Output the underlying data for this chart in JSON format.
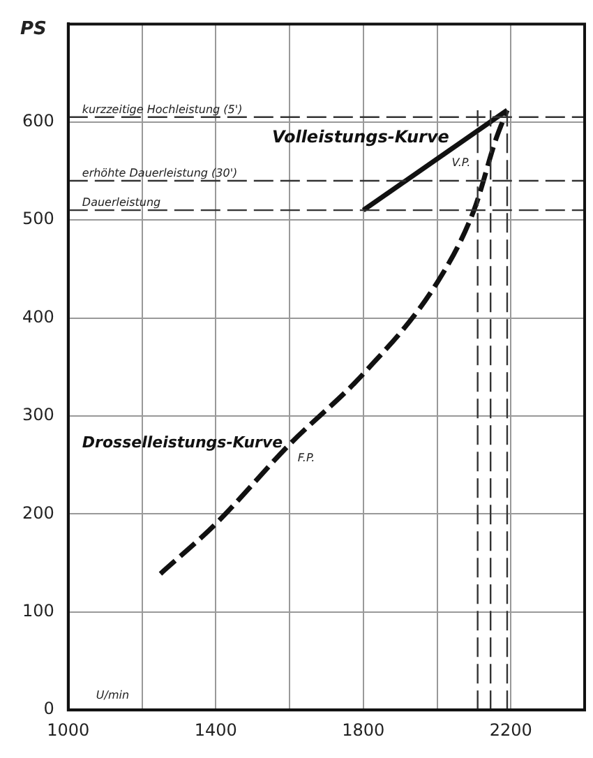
{
  "chart_data": {
    "type": "line",
    "xlabel": "U/min",
    "ylabel": "PS",
    "xlim": [
      1000,
      2400
    ],
    "ylim": [
      0,
      700
    ],
    "xticks": [
      1000,
      {
        "value": 1200,
        "label": null
      },
      1400,
      {
        "value": 1600,
        "label": null
      },
      1800,
      {
        "value": 2000,
        "label": null
      },
      2200
    ],
    "yticks": [
      0,
      100,
      200,
      300,
      400,
      500,
      600
    ],
    "grid": true,
    "legend": false,
    "marker": "none",
    "series": [
      {
        "name": "Volleistungs-Kurve",
        "color": "#111111",
        "line_style": "solid",
        "x": [
          1800,
          2190
        ],
        "values": [
          510,
          612
        ]
      },
      {
        "name": "Drosselleistungs-Kurve",
        "color": "#111111",
        "line_style": "dashed",
        "x": [
          1250,
          1400,
          1600,
          1800,
          2000,
          2100,
          2160,
          2190
        ],
        "values": [
          139,
          190,
          271,
          343,
          436,
          510,
          583,
          612
        ]
      }
    ],
    "ref_lines": [
      {
        "axis": "y",
        "value": 605,
        "label": "kurzzeitige Hochleistung (5')",
        "line_style": "dashed",
        "color": "#333333"
      },
      {
        "axis": "y",
        "value": 540,
        "label": "erhöhte Dauerleistung (30')",
        "line_style": "dashed",
        "color": "#333333"
      },
      {
        "axis": "y",
        "value": 510,
        "label": "Dauerleistung",
        "line_style": "dashed",
        "color": "#333333"
      },
      {
        "axis": "x",
        "value": 2110,
        "line_style": "dashed",
        "color": "#333333"
      },
      {
        "axis": "x",
        "value": 2145,
        "line_style": "dashed",
        "color": "#333333"
      },
      {
        "axis": "x",
        "value": 2190,
        "line_style": "dashed",
        "color": "#333333"
      }
    ],
    "annotations": [
      {
        "text": "V.P.",
        "x": 2050,
        "y": 575
      },
      {
        "text": "F.P.",
        "x": 1600,
        "y": 271
      }
    ]
  }
}
